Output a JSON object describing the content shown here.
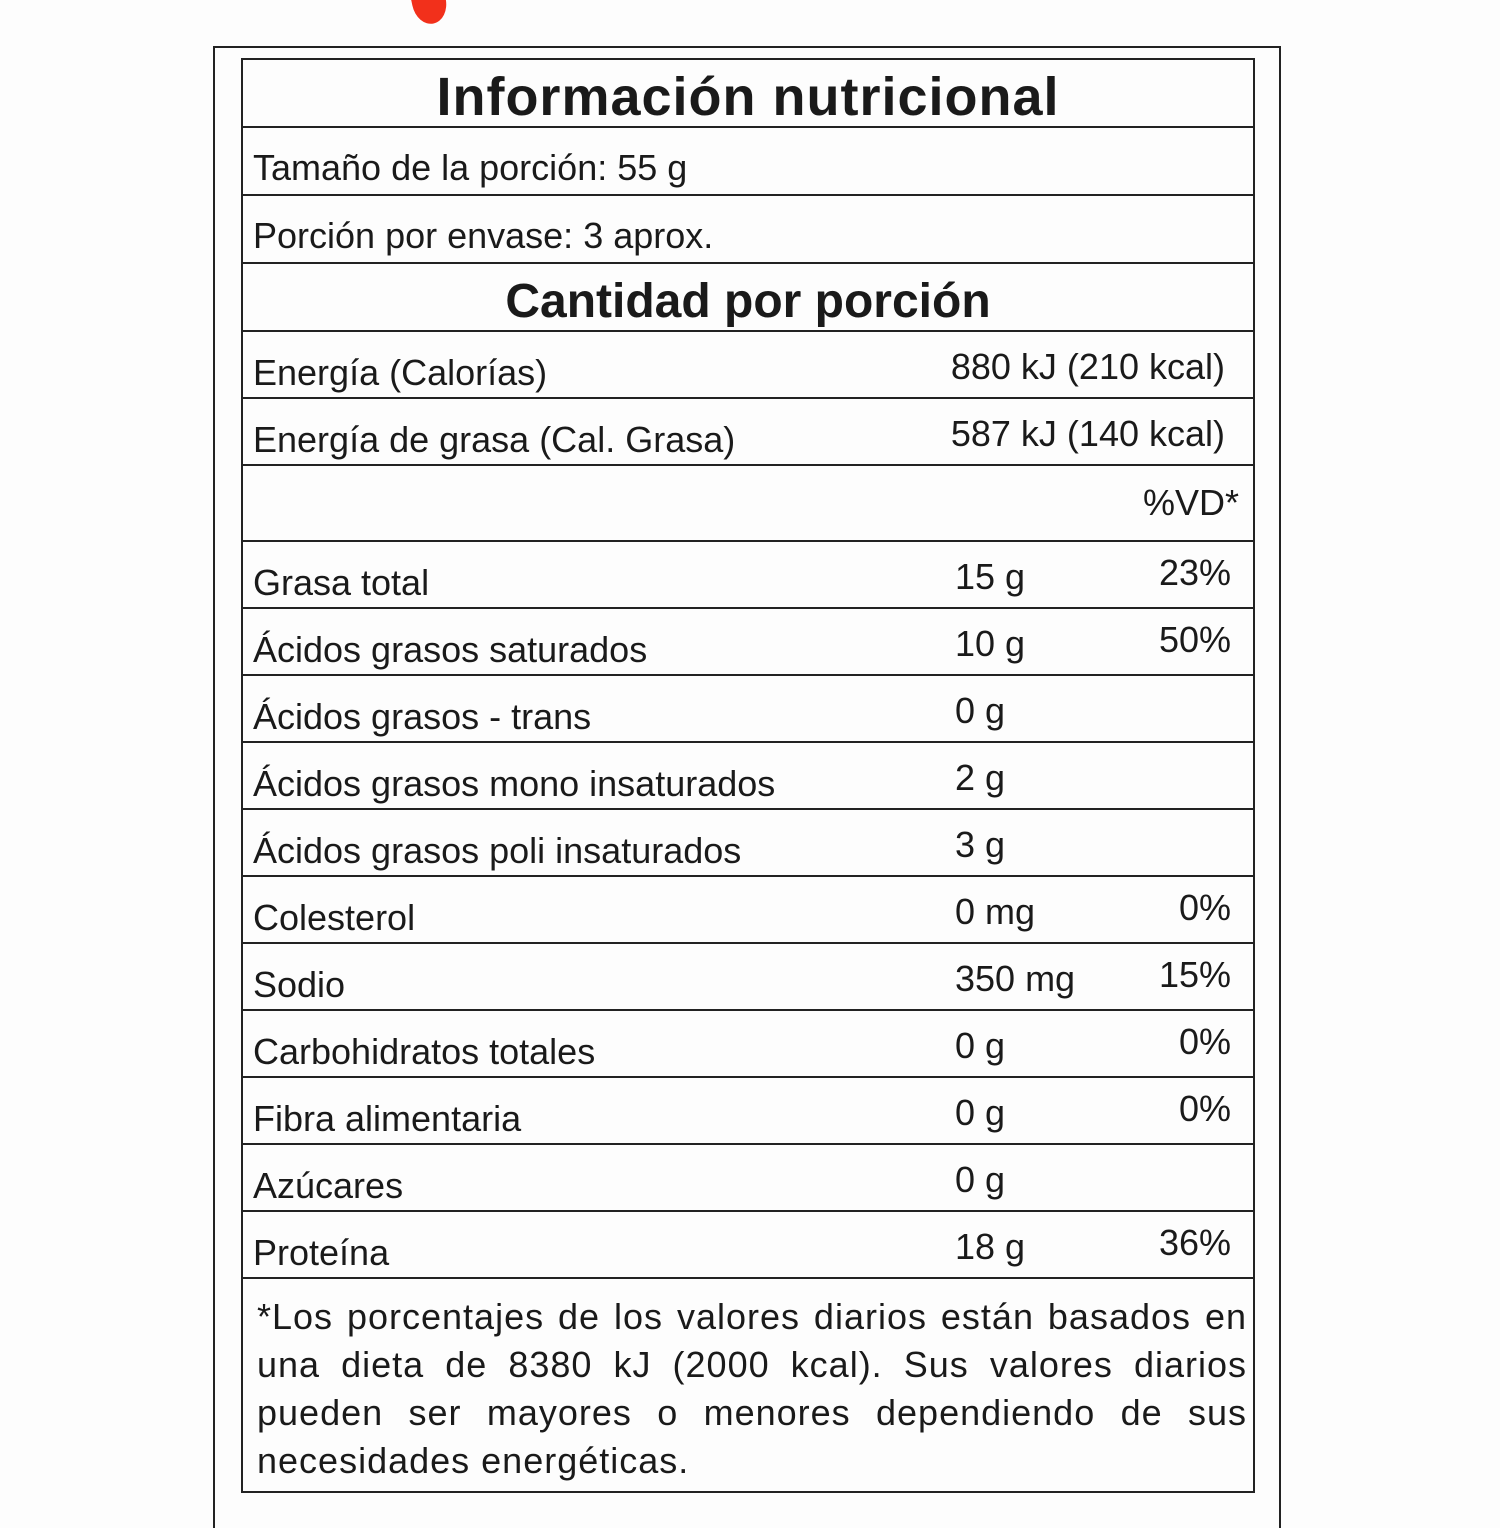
{
  "label": {
    "title": "Información nutricional",
    "serving_size": "Tamaño de la porción: 55 g",
    "servings_per_container": "Porción por envase: 3 aprox.",
    "amount_per_serving": "Cantidad por porción",
    "energy": [
      {
        "label": "Energía (Calorías)",
        "value": "880 kJ (210 kcal)"
      },
      {
        "label": "Energía de grasa (Cal. Grasa)",
        "value": "587 kJ (140 kcal)"
      }
    ],
    "dv_header": "%VD*",
    "nutrients": [
      {
        "label": "Grasa total",
        "amount": "15 g",
        "dv": "23%"
      },
      {
        "label": "Ácidos grasos saturados",
        "amount": "10 g",
        "dv": "50%"
      },
      {
        "label": "Ácidos grasos - trans",
        "amount": "0 g",
        "dv": ""
      },
      {
        "label": "Ácidos grasos mono insaturados",
        "amount": "2 g",
        "dv": ""
      },
      {
        "label": "Ácidos grasos poli insaturados",
        "amount": "3 g",
        "dv": ""
      },
      {
        "label": "Colesterol",
        "amount": "0 mg",
        "dv": "0%"
      },
      {
        "label": "Sodio",
        "amount": "350 mg",
        "dv": "15%"
      },
      {
        "label": "Carbohidratos totales",
        "amount": "0 g",
        "dv": "0%"
      },
      {
        "label": "Fibra alimentaria",
        "amount": "0 g",
        "dv": "0%"
      },
      {
        "label": "Azúcares",
        "amount": "0 g",
        "dv": ""
      },
      {
        "label": "Proteína",
        "amount": "18 g",
        "dv": "36%"
      }
    ],
    "footnote": "*Los porcentajes de los valores diarios están basados en una dieta de 8380 kJ (2000 kcal). Sus valores diarios pueden ser mayores o menores dependiendo de sus necesidades energéticas."
  },
  "colors": {
    "ink": "#1a1a1a",
    "background": "#fdfdfd",
    "red_mark": "#f2301b"
  }
}
